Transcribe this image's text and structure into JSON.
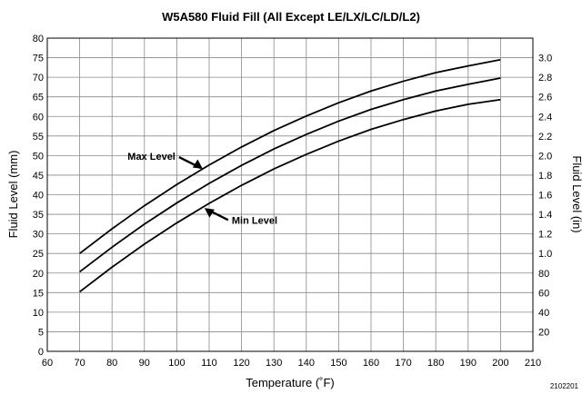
{
  "chart_data": {
    "type": "line",
    "title": "W5A580 Fluid Fill (All Except LE/LX/LC/LD/L2)",
    "xlabel": "Temperature (˚F)",
    "ylabel": "Fluid Level (mm)",
    "y2label": "Fluid Level (in)",
    "xlim": [
      60,
      210
    ],
    "ylim": [
      0,
      80
    ],
    "x_ticks": [
      60,
      70,
      80,
      90,
      100,
      110,
      120,
      130,
      140,
      150,
      160,
      170,
      180,
      190,
      200,
      210
    ],
    "y_ticks": [
      0,
      5,
      10,
      15,
      20,
      25,
      30,
      35,
      40,
      45,
      50,
      55,
      60,
      65,
      70,
      75,
      80
    ],
    "y2_ticks": [
      {
        "label": "20",
        "mm": 5
      },
      {
        "label": "40",
        "mm": 10
      },
      {
        "label": "60",
        "mm": 15
      },
      {
        "label": "80",
        "mm": 20
      },
      {
        "label": "1.0",
        "mm": 25
      },
      {
        "label": "1.2",
        "mm": 30
      },
      {
        "label": "1.4",
        "mm": 35
      },
      {
        "label": "1.6",
        "mm": 40
      },
      {
        "label": "1.8",
        "mm": 45
      },
      {
        "label": "2.0",
        "mm": 50
      },
      {
        "label": "2.2",
        "mm": 55
      },
      {
        "label": "2.4",
        "mm": 60
      },
      {
        "label": "2.6",
        "mm": 65
      },
      {
        "label": "2.8",
        "mm": 70
      },
      {
        "label": "3.0",
        "mm": 75
      }
    ],
    "grid": true,
    "x": [
      70,
      80,
      90,
      100,
      110,
      120,
      130,
      140,
      150,
      160,
      170,
      180,
      190,
      200
    ],
    "series": [
      {
        "name": "Max Level",
        "values": [
          25.0,
          31.3,
          37.2,
          42.6,
          47.6,
          52.2,
          56.4,
          60.1,
          63.5,
          66.5,
          69.0,
          71.2,
          72.9,
          74.5
        ]
      },
      {
        "name": "",
        "values": [
          20.3,
          26.6,
          32.5,
          37.9,
          42.9,
          47.5,
          51.7,
          55.4,
          58.8,
          61.8,
          64.3,
          66.5,
          68.2,
          69.8
        ]
      },
      {
        "name": "Min Level",
        "values": [
          15.2,
          21.5,
          27.4,
          32.8,
          37.8,
          42.4,
          46.6,
          50.3,
          53.7,
          56.7,
          59.2,
          61.4,
          63.1,
          64.3
        ]
      }
    ],
    "annotations": [
      {
        "text": "Max Level",
        "series": 0,
        "at_x": 108
      },
      {
        "text": "Min Level",
        "series": 2,
        "at_x": 108
      }
    ],
    "figure_id": "2102201"
  }
}
